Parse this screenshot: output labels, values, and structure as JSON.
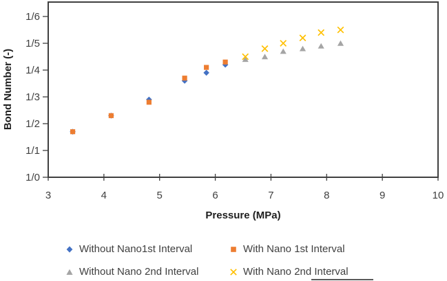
{
  "chart_data": {
    "type": "scatter",
    "title": "",
    "xlabel": "Pressure (MPa)",
    "ylabel": "Bond Number (-)",
    "xlim": [
      3,
      10
    ],
    "ylim": [
      1.0,
      1.65
    ],
    "grid": false,
    "legend_position": "bottom",
    "axis_color": "#3F3F3F",
    "text_color": "#404040",
    "x_ticks": [
      "3",
      "4",
      "5",
      "6",
      "7",
      "8",
      "9",
      "10"
    ],
    "y_ticks": [
      {
        "label": "1/0",
        "value": 1.0
      },
      {
        "label": "1/1",
        "value": 1.1
      },
      {
        "label": "1/2",
        "value": 1.2
      },
      {
        "label": "1/3",
        "value": 1.3
      },
      {
        "label": "1/4",
        "value": 1.4
      },
      {
        "label": "1/5",
        "value": 1.5
      },
      {
        "label": "1/6",
        "value": 1.6
      }
    ],
    "series": [
      {
        "name": "Without Nano1st Interval",
        "marker": "diamond",
        "color": "#4472C4",
        "points": [
          [
            3.44,
            1.17
          ],
          [
            4.13,
            1.23
          ],
          [
            4.81,
            1.29
          ],
          [
            5.45,
            1.36
          ],
          [
            5.84,
            1.39
          ],
          [
            6.18,
            1.42
          ]
        ]
      },
      {
        "name": "With Nano 1st Interval",
        "marker": "square",
        "color": "#ED7D31",
        "points": [
          [
            3.44,
            1.17
          ],
          [
            4.13,
            1.23
          ],
          [
            4.81,
            1.28
          ],
          [
            5.45,
            1.37
          ],
          [
            5.84,
            1.41
          ],
          [
            6.18,
            1.43
          ]
        ]
      },
      {
        "name": "Without Nano 2nd Interval",
        "marker": "triangle",
        "color": "#A5A5A5",
        "points": [
          [
            6.54,
            1.44
          ],
          [
            6.89,
            1.45
          ],
          [
            7.22,
            1.47
          ],
          [
            7.57,
            1.48
          ],
          [
            7.9,
            1.49
          ],
          [
            8.25,
            1.5
          ]
        ]
      },
      {
        "name": "With Nano 2nd Interval",
        "marker": "x",
        "color": "#FFC000",
        "points": [
          [
            6.54,
            1.45
          ],
          [
            6.89,
            1.48
          ],
          [
            7.22,
            1.5
          ],
          [
            7.57,
            1.52
          ],
          [
            7.9,
            1.54
          ],
          [
            8.25,
            1.55
          ]
        ]
      }
    ]
  }
}
